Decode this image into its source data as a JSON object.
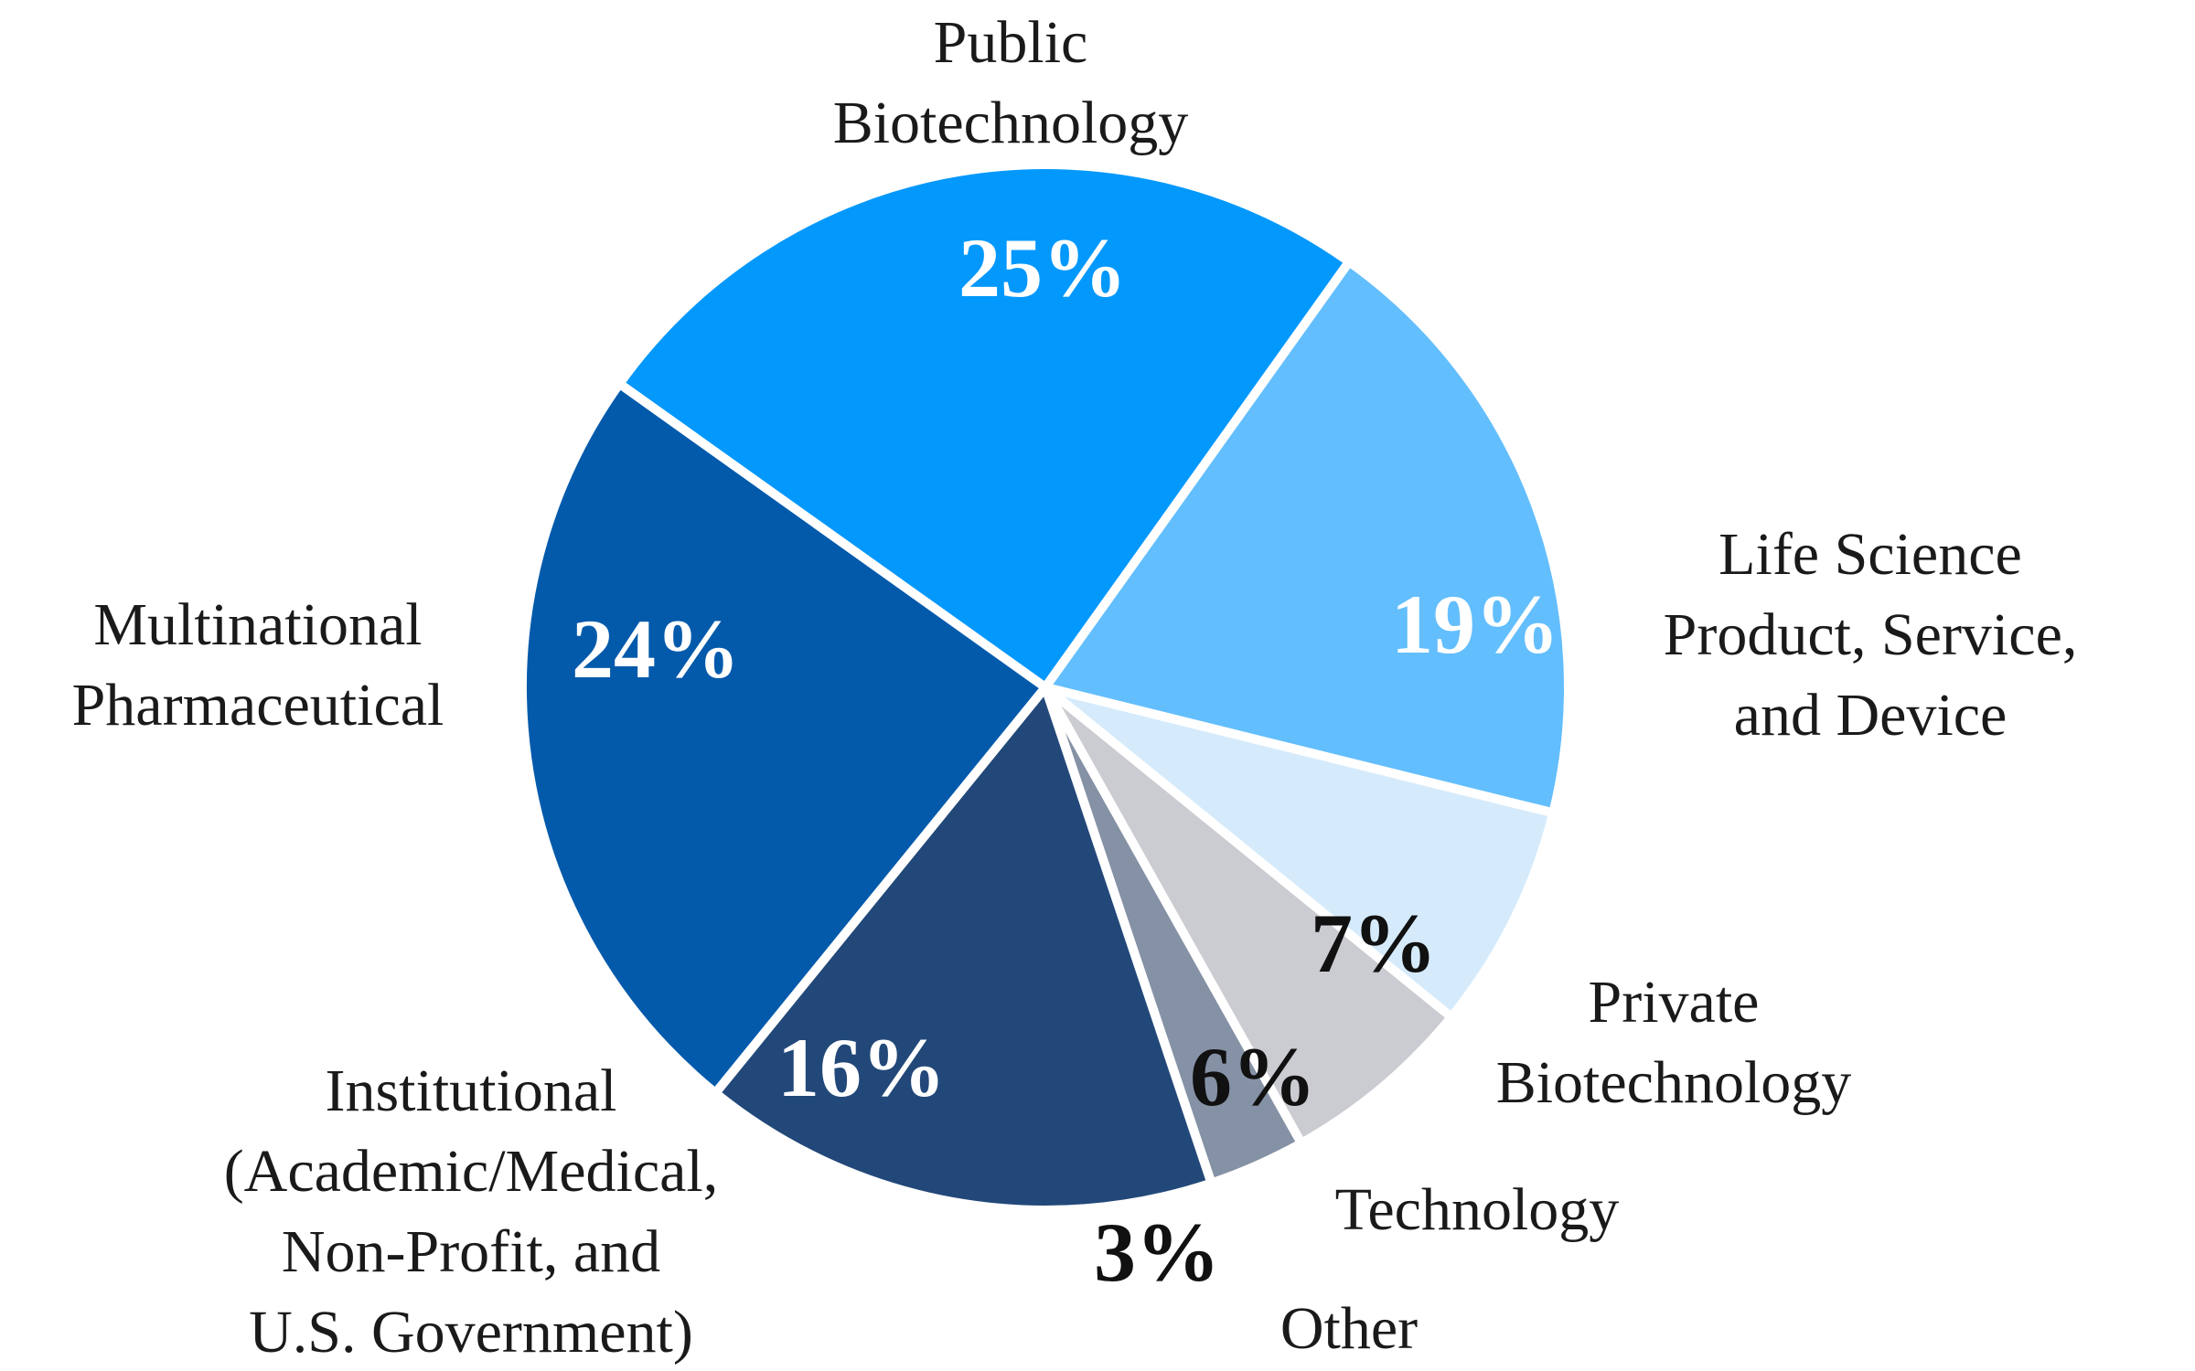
{
  "chart_data": {
    "type": "pie",
    "title": "",
    "slices": [
      {
        "name": "Public Biotechnology",
        "label_lines": [
          "Public",
          "Biotechnology"
        ],
        "value": 25,
        "value_label": "25%",
        "color": "#0398FC",
        "value_label_color": "#ffffff"
      },
      {
        "name": "Life Science Product, Service, and Device",
        "label_lines": [
          "Life Science",
          "Product, Service,",
          "and Device"
        ],
        "value": 19,
        "value_label": "19%",
        "color": "#63BEFD",
        "value_label_color": "#ffffff"
      },
      {
        "name": "Private Biotechnology",
        "label_lines": [
          "Private",
          "Biotechnology"
        ],
        "value": 7,
        "value_label": "7%",
        "color": "#D5EBFC",
        "value_label_color": "#111111"
      },
      {
        "name": "Technology",
        "label_lines": [
          "Technology"
        ],
        "value": 6,
        "value_label": "6%",
        "color": "#CBCCD1",
        "value_label_color": "#111111"
      },
      {
        "name": "Other",
        "label_lines": [
          "Other"
        ],
        "value": 3,
        "value_label": "3%",
        "color": "#8591A5",
        "value_label_color": "#111111"
      },
      {
        "name": "Institutional (Academic/Medical, Non-Profit, and U.S. Government)",
        "label_lines": [
          "Institutional",
          "(Academic/Medical,",
          "Non-Profit, and",
          "U.S. Government)"
        ],
        "value": 16,
        "value_label": "16%",
        "color": "#224879",
        "value_label_color": "#ffffff"
      },
      {
        "name": "Multinational Pharmaceutical",
        "label_lines": [
          "Multinational",
          "Pharmaceutical"
        ],
        "value": 24,
        "value_label": "24%",
        "color": "#035AAB",
        "value_label_color": "#ffffff"
      }
    ],
    "start_angle_deg": -54.5,
    "direction": "clockwise",
    "legend": "none",
    "separator_color": "#ffffff"
  }
}
